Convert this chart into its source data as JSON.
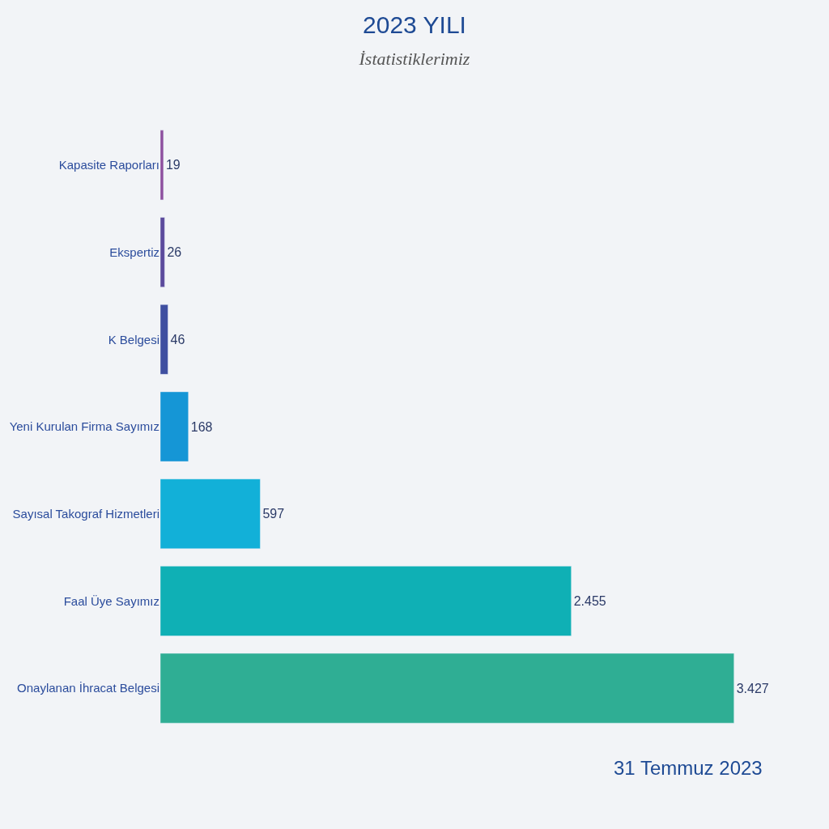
{
  "chart_data": {
    "type": "bar",
    "orientation": "horizontal",
    "title": "2023 YILI",
    "subtitle": "İstatistiklerimiz",
    "categories": [
      "Kapasite Raporları",
      "Ekspertiz",
      "K Belgesi",
      "Yeni Kurulan Firma Sayımız",
      "Sayısal Takograf Hizmetleri",
      "Faal Üye Sayımız",
      "Onaylanan İhracat Belgesi"
    ],
    "values": [
      19,
      26,
      46,
      168,
      597,
      2455,
      3427
    ],
    "value_labels": [
      "19",
      "26",
      "46",
      "168",
      "597",
      "2.455",
      "3.427"
    ],
    "colors": [
      "#8e4f9e",
      "#5b4a9c",
      "#3f4fa0",
      "#1596d6",
      "#12b0d8",
      "#0fb0b5",
      "#2fae94"
    ],
    "annotations": [
      "31 Temmuz 2023"
    ]
  }
}
